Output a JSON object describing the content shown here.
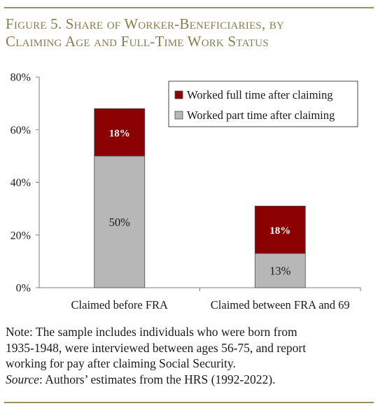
{
  "figure": {
    "title_line1": "Figure 5. Share of Worker-Beneficiaries, by",
    "title_line2": "Claiming Age and Full-Time Work Status"
  },
  "note": {
    "line1": "Note: The sample includes individuals who were born from",
    "line2": "1935-1948, were interviewed between ages 56-75, and report",
    "line3": "working for pay after claiming Social Security.",
    "source_label": "Source",
    "source_text": ": Authors’ estimates from the HRS (1992-2022)."
  },
  "colors": {
    "title": "#8a7c4f",
    "rule": "#9c8f5e",
    "full_time": "#8b0000",
    "part_time": "#b7b7b7"
  },
  "chart_data": {
    "type": "bar",
    "stacked": true,
    "categories": [
      "Claimed before FRA",
      "Claimed between FRA and 69"
    ],
    "series": [
      {
        "name": "Worked part time after claiming",
        "values": [
          50,
          13
        ],
        "labels": [
          "50%",
          "13%"
        ],
        "color": "#b7b7b7"
      },
      {
        "name": "Worked full time after claiming",
        "values": [
          18,
          18
        ],
        "labels": [
          "18%",
          "18%"
        ],
        "color": "#8b0000"
      }
    ],
    "ylim": [
      0,
      80
    ],
    "yticks": [
      0,
      20,
      40,
      60,
      80
    ],
    "ytick_labels": [
      "0%",
      "20%",
      "40%",
      "60%",
      "80%"
    ],
    "legend_order": [
      "Worked full time after claiming",
      "Worked part time after claiming"
    ],
    "legend_position": "top-right",
    "grid": false
  }
}
